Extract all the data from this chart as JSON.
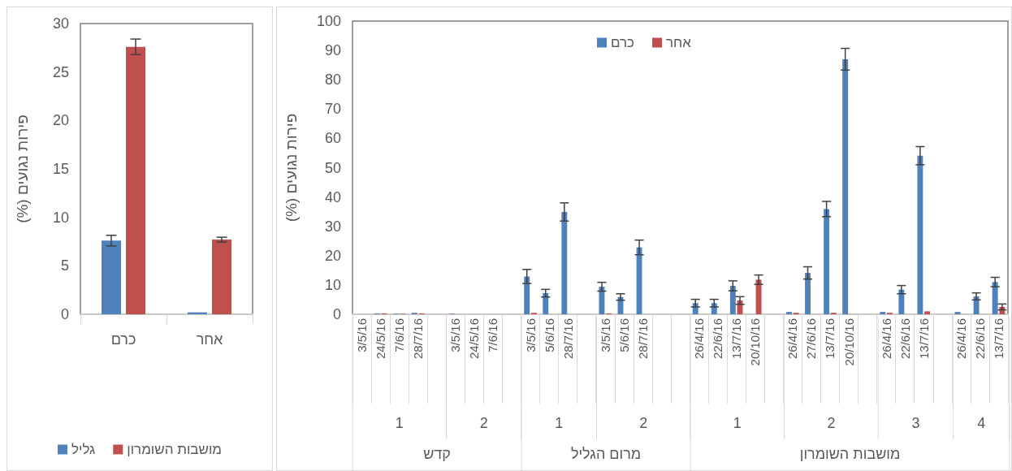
{
  "chart_data": [
    {
      "type": "bar",
      "ylabel": "פירות נגועים (%)",
      "categories": [
        "כרם",
        "אחר"
      ],
      "ylim": [
        0,
        30
      ],
      "yticks": [
        0,
        5,
        10,
        15,
        20,
        25,
        30
      ],
      "grid": false,
      "legend": "bottom",
      "series": [
        {
          "name": "גליל",
          "color": "#4f81bd",
          "values": [
            7.6,
            0.2
          ],
          "errors": [
            0.55,
            null
          ]
        },
        {
          "name": "מושבות השומרון",
          "color": "#c0504d",
          "values": [
            27.6,
            7.7
          ],
          "errors": [
            0.8,
            0.25
          ]
        }
      ]
    },
    {
      "type": "bar",
      "ylabel": "פירות נגועים (%)",
      "ylim": [
        0,
        100
      ],
      "yticks": [
        0,
        10,
        20,
        30,
        40,
        50,
        60,
        70,
        80,
        90,
        100
      ],
      "grid": false,
      "legend": "top",
      "categories": [
        "3/5/16",
        "24/5/16",
        "7/6/16",
        "28/7/16",
        null,
        "3/5/16",
        "24/5/16",
        "7/6/16",
        null,
        "3/5/16",
        "5/6/16",
        "28/7/16",
        null,
        "3/5/16",
        "5/6/16",
        "28/7/16",
        null,
        null,
        "26/4/16",
        "22/6/16",
        "13/7/16",
        "20/10/16",
        null,
        "26/4/16",
        "27/6/16",
        "13/7/16",
        "20/10/16",
        null,
        "26/4/16",
        "22/6/16",
        "13/7/16",
        null,
        "26/4/16",
        "22/6/16",
        "13/7/16"
      ],
      "annotations": [
        "1",
        "2",
        "1",
        "2",
        "1",
        "2",
        "3",
        "4",
        "קדש",
        "מרום הגליל",
        "מושבות השומרון"
      ],
      "series": [
        {
          "name": "כרם",
          "color": "#4f81bd",
          "values": [
            0,
            0.3,
            0.2,
            0.5,
            null,
            0.2,
            0,
            0,
            null,
            12.9,
            7.2,
            34.9,
            null,
            9.4,
            5.9,
            22.8,
            null,
            null,
            3.8,
            3.8,
            9.7,
            0,
            null,
            0.8,
            14.1,
            35.9,
            87,
            null,
            0.8,
            8.4,
            54.1,
            null,
            0.8,
            6.1,
            11
          ],
          "errors": [
            null,
            null,
            null,
            null,
            null,
            null,
            null,
            null,
            null,
            2.4,
            1.3,
            3.1,
            null,
            1.5,
            1.1,
            2.5,
            null,
            null,
            1.3,
            1.3,
            1.7,
            null,
            null,
            null,
            2.1,
            2.6,
            3.7,
            null,
            null,
            1.4,
            3.1,
            null,
            null,
            1.2,
            1.6
          ]
        },
        {
          "name": "אחר",
          "color": "#c0504d",
          "values": [
            0,
            0.3,
            0.2,
            0.3,
            null,
            0,
            0,
            0,
            null,
            0.5,
            0,
            0,
            null,
            0.3,
            0,
            0,
            null,
            null,
            0,
            0,
            4.7,
            11.8,
            null,
            0.5,
            0,
            0.5,
            0,
            null,
            0.5,
            0,
            1,
            null,
            0,
            0,
            2.5
          ],
          "errors": [
            null,
            null,
            null,
            null,
            null,
            null,
            null,
            null,
            null,
            null,
            null,
            null,
            null,
            null,
            null,
            null,
            null,
            null,
            null,
            null,
            1.3,
            1.6,
            null,
            null,
            null,
            null,
            null,
            null,
            null,
            null,
            null,
            null,
            null,
            null,
            1
          ]
        }
      ]
    }
  ]
}
